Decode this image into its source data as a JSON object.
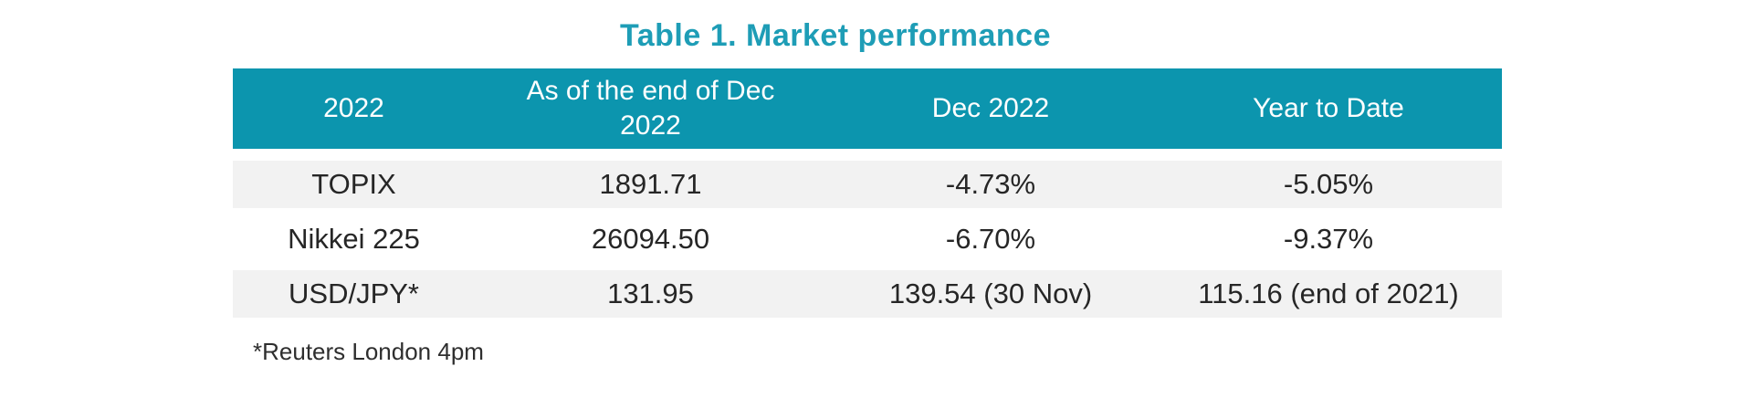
{
  "title": "Table 1. Market performance",
  "colors": {
    "title_text": "#1E9DB6",
    "header_bg": "#0C95AE",
    "header_text": "#FFFFFF",
    "alt_row_bg": "#F2F2F2",
    "body_text": "#262626"
  },
  "table": {
    "columns": [
      "2022",
      "As of the end of Dec 2022",
      "Dec 2022",
      "Year to Date"
    ],
    "rows": [
      {
        "cells": [
          "TOPIX",
          "1891.71",
          "-4.73%",
          "-5.05%"
        ]
      },
      {
        "cells": [
          "Nikkei 225",
          "26094.50",
          "-6.70%",
          "-9.37%"
        ]
      },
      {
        "cells": [
          "USD/JPY*",
          "131.95",
          "139.54 (30 Nov)",
          "115.16 (end of 2021)"
        ]
      }
    ],
    "footnote": "*Reuters London 4pm"
  },
  "chart_data": {
    "type": "table",
    "title": "Table 1. Market performance",
    "columns": [
      "2022",
      "As of the end of Dec 2022",
      "Dec 2022",
      "Year to Date"
    ],
    "rows": [
      [
        "TOPIX",
        "1891.71",
        "-4.73%",
        "-5.05%"
      ],
      [
        "Nikkei 225",
        "26094.50",
        "-6.70%",
        "-9.37%"
      ],
      [
        "USD/JPY*",
        "131.95",
        "139.54 (30 Nov)",
        "115.16 (end of 2021)"
      ]
    ],
    "footnote": "*Reuters London 4pm"
  }
}
